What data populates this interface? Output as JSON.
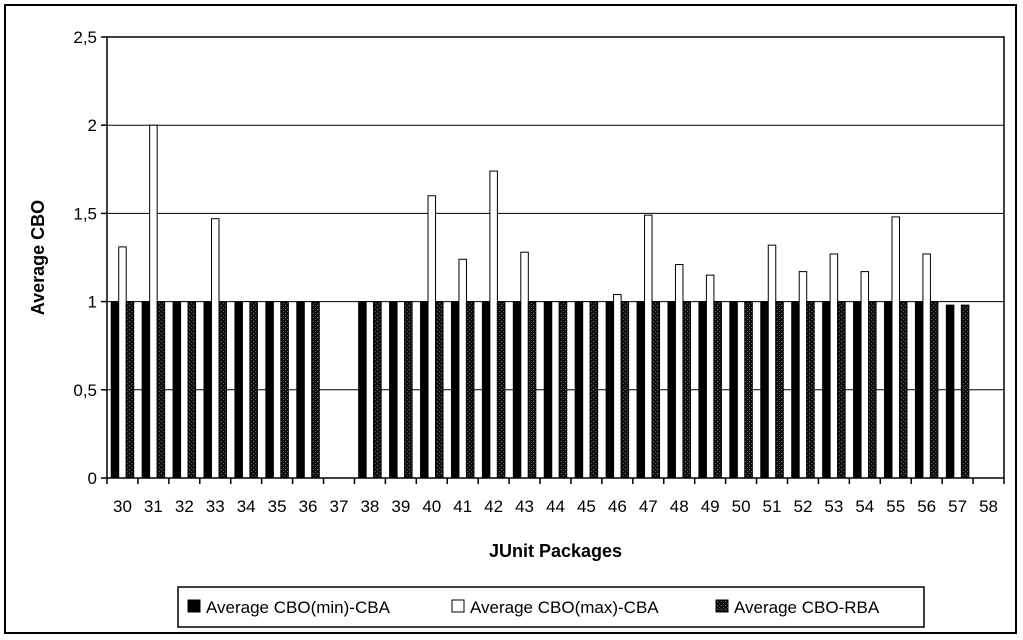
{
  "chart_data": {
    "type": "bar",
    "xlabel": "JUnit Packages",
    "ylabel": "Average CBO",
    "ylim": [
      0,
      2.5
    ],
    "yticks": [
      "0",
      "0,5",
      "1",
      "1,5",
      "2",
      "2,5"
    ],
    "categories": [
      "30",
      "31",
      "32",
      "33",
      "34",
      "35",
      "36",
      "37",
      "38",
      "39",
      "40",
      "41",
      "42",
      "43",
      "44",
      "45",
      "46",
      "47",
      "48",
      "49",
      "50",
      "51",
      "52",
      "53",
      "54",
      "55",
      "56",
      "57",
      "58"
    ],
    "grid": true,
    "legend_position": "bottom",
    "series": [
      {
        "name": "Average CBO(min)-CBA",
        "color": "#000000",
        "pattern": "solid",
        "values": [
          1,
          1,
          1,
          1,
          1,
          1,
          1,
          null,
          1,
          1,
          1,
          1,
          1,
          1,
          1,
          1,
          1,
          1,
          1,
          1,
          1,
          1,
          1,
          1,
          1,
          1,
          1,
          0.98,
          null
        ]
      },
      {
        "name": "Average CBO(max)-CBA",
        "color": "#ffffff",
        "pattern": "open",
        "values": [
          1.31,
          2.0,
          1.0,
          1.47,
          1.0,
          1.0,
          1.0,
          null,
          1.0,
          1.0,
          1.6,
          1.24,
          1.74,
          1.28,
          1.0,
          1.0,
          1.04,
          1.49,
          1.21,
          1.15,
          1.0,
          1.32,
          1.17,
          1.27,
          1.17,
          1.48,
          1.27,
          null,
          null
        ]
      },
      {
        "name": "Average CBO-RBA",
        "color": "#111111",
        "pattern": "speckled",
        "values": [
          1,
          1,
          1,
          1,
          1,
          1,
          1,
          null,
          1,
          1,
          1,
          1,
          1,
          1,
          1,
          1,
          1,
          1,
          1,
          1,
          1,
          1,
          1,
          1,
          1,
          1,
          1,
          0.98,
          null
        ]
      }
    ]
  }
}
